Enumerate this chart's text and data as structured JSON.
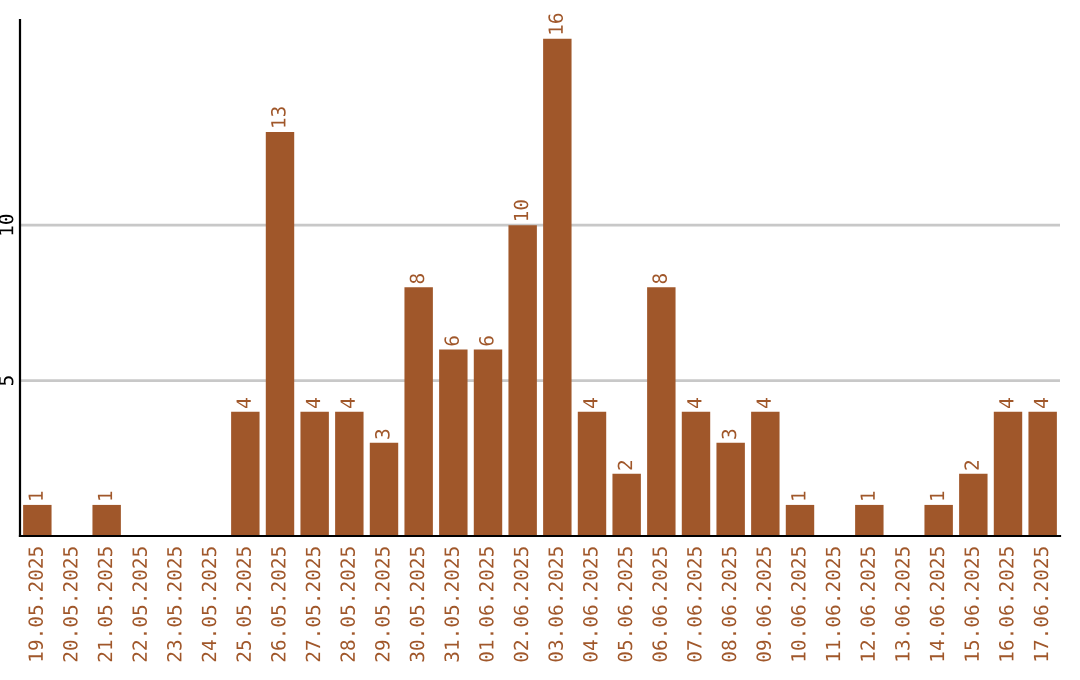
{
  "chart_data": {
    "type": "bar",
    "categories": [
      "19.05.2025",
      "20.05.2025",
      "21.05.2025",
      "22.05.2025",
      "23.05.2025",
      "24.05.2025",
      "25.05.2025",
      "26.05.2025",
      "27.05.2025",
      "28.05.2025",
      "29.05.2025",
      "30.05.2025",
      "31.05.2025",
      "01.06.2025",
      "02.06.2025",
      "03.06.2025",
      "04.06.2025",
      "05.06.2025",
      "06.06.2025",
      "07.06.2025",
      "08.06.2025",
      "09.06.2025",
      "10.06.2025",
      "11.06.2025",
      "12.06.2025",
      "13.06.2025",
      "14.06.2025",
      "15.06.2025",
      "16.06.2025",
      "17.06.2025"
    ],
    "values": [
      1,
      0,
      1,
      0,
      0,
      0,
      4,
      13,
      4,
      4,
      3,
      8,
      6,
      6,
      10,
      16,
      4,
      2,
      8,
      4,
      3,
      4,
      1,
      0,
      1,
      0,
      1,
      2,
      4,
      4
    ],
    "value_labels": [
      "1",
      null,
      "1",
      null,
      null,
      null,
      "4",
      "13",
      "4",
      "4",
      "3",
      "8",
      "6",
      "6",
      "10",
      "16",
      "4",
      "2",
      "8",
      "4",
      "3",
      "4",
      "1",
      null,
      "1",
      null,
      "1",
      "2",
      "4",
      "4"
    ],
    "color": "#a0572a",
    "ylim": [
      0,
      16.6
    ],
    "yticks": [
      5,
      10
    ],
    "grid": "y"
  }
}
